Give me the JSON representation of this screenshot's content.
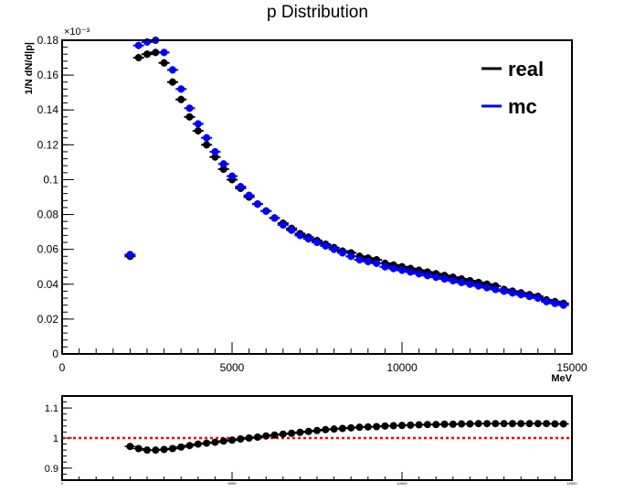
{
  "title": "p Distribution",
  "chart_data": [
    {
      "type": "scatter",
      "title": "p Distribution",
      "xlabel": "MeV",
      "ylabel": "1/N dN/d|p|",
      "y_exponent": "×10⁻³",
      "xlim": [
        0,
        15000
      ],
      "ylim": [
        0,
        0.18
      ],
      "x_ticks": [
        "0",
        "5000",
        "10000",
        "15000"
      ],
      "y_ticks": [
        "0",
        "0.02",
        "0.04",
        "0.06",
        "0.08",
        "0.1",
        "0.12",
        "0.14",
        "0.16",
        "0.18"
      ],
      "legend_position": "top-right",
      "grid": false,
      "series": [
        {
          "name": "real",
          "color": "#000000",
          "x": [
            2000,
            2250,
            2500,
            2750,
            3000,
            3250,
            3500,
            3750,
            4000,
            4250,
            4500,
            4750,
            5000,
            5250,
            5500,
            5750,
            6000,
            6250,
            6500,
            6750,
            7000,
            7250,
            7500,
            7750,
            8000,
            8250,
            8500,
            8750,
            9000,
            9250,
            9500,
            9750,
            10000,
            10250,
            10500,
            10750,
            11000,
            11250,
            11500,
            11750,
            12000,
            12250,
            12500,
            12750,
            13000,
            13250,
            13500,
            13750,
            14000,
            14250,
            14500,
            14750
          ],
          "values": [
            0.056,
            0.17,
            0.172,
            0.173,
            0.167,
            0.156,
            0.146,
            0.136,
            0.128,
            0.12,
            0.113,
            0.106,
            0.1,
            0.095,
            0.09,
            0.086,
            0.082,
            0.078,
            0.075,
            0.072,
            0.069,
            0.067,
            0.065,
            0.063,
            0.061,
            0.059,
            0.058,
            0.056,
            0.055,
            0.054,
            0.052,
            0.051,
            0.05,
            0.049,
            0.048,
            0.047,
            0.046,
            0.045,
            0.044,
            0.043,
            0.042,
            0.041,
            0.04,
            0.039,
            0.037,
            0.036,
            0.035,
            0.034,
            0.033,
            0.031,
            0.03,
            0.029
          ]
        },
        {
          "name": "mc",
          "color": "#0000ff",
          "x": [
            2000,
            2250,
            2500,
            2750,
            3000,
            3250,
            3500,
            3750,
            4000,
            4250,
            4500,
            4750,
            5000,
            5250,
            5500,
            5750,
            6000,
            6250,
            6500,
            6750,
            7000,
            7250,
            7500,
            7750,
            8000,
            8250,
            8500,
            8750,
            9000,
            9250,
            9500,
            9750,
            10000,
            10250,
            10500,
            10750,
            11000,
            11250,
            11500,
            11750,
            12000,
            12250,
            12500,
            12750,
            13000,
            13250,
            13500,
            13750,
            14000,
            14250,
            14500,
            14750
          ],
          "values": [
            0.057,
            0.177,
            0.179,
            0.18,
            0.173,
            0.163,
            0.152,
            0.141,
            0.132,
            0.124,
            0.116,
            0.109,
            0.102,
            0.096,
            0.091,
            0.086,
            0.082,
            0.078,
            0.074,
            0.071,
            0.068,
            0.066,
            0.064,
            0.062,
            0.06,
            0.058,
            0.056,
            0.054,
            0.053,
            0.052,
            0.05,
            0.049,
            0.048,
            0.047,
            0.046,
            0.045,
            0.044,
            0.043,
            0.042,
            0.041,
            0.04,
            0.039,
            0.038,
            0.037,
            0.036,
            0.035,
            0.034,
            0.033,
            0.032,
            0.03,
            0.029,
            0.028
          ]
        }
      ]
    },
    {
      "type": "scatter",
      "title": "",
      "xlabel": "",
      "ylabel": "",
      "xlim": [
        0,
        15000
      ],
      "ylim": [
        0.86,
        1.14
      ],
      "x_ticks": [
        "0",
        "5000",
        "10000",
        "15000"
      ],
      "y_ticks": [
        "0.9",
        "1",
        "1.1"
      ],
      "reference_line": {
        "y": 1,
        "color": "#ff0000",
        "style": "dotted"
      },
      "series": [
        {
          "color": "#000000",
          "x": [
            2000,
            2250,
            2500,
            2750,
            3000,
            3250,
            3500,
            3750,
            4000,
            4250,
            4500,
            4750,
            5000,
            5250,
            5500,
            5750,
            6000,
            6250,
            6500,
            6750,
            7000,
            7250,
            7500,
            7750,
            8000,
            8250,
            8500,
            8750,
            9000,
            9250,
            9500,
            9750,
            10000,
            10250,
            10500,
            10750,
            11000,
            11250,
            11500,
            11750,
            12000,
            12250,
            12500,
            12750,
            13000,
            13250,
            13500,
            13750,
            14000,
            14250,
            14500,
            14750
          ],
          "values": [
            0.972,
            0.965,
            0.96,
            0.96,
            0.962,
            0.965,
            0.97,
            0.975,
            0.98,
            0.983,
            0.986,
            0.99,
            0.993,
            0.997,
            1.0,
            1.003,
            1.007,
            1.01,
            1.013,
            1.016,
            1.019,
            1.022,
            1.025,
            1.028,
            1.03,
            1.032,
            1.034,
            1.036,
            1.037,
            1.038,
            1.04,
            1.041,
            1.042,
            1.043,
            1.044,
            1.045,
            1.045,
            1.046,
            1.046,
            1.047,
            1.047,
            1.048,
            1.048,
            1.048,
            1.048,
            1.048,
            1.048,
            1.048,
            1.048,
            1.048,
            1.047,
            1.047
          ]
        }
      ]
    }
  ]
}
